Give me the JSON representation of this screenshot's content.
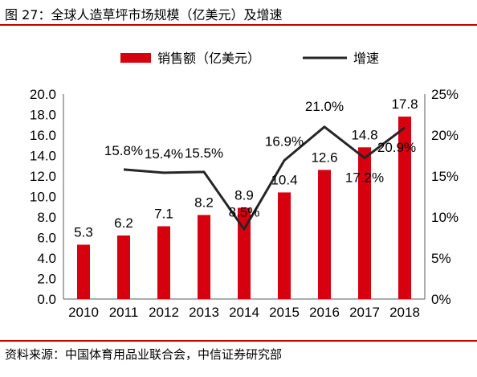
{
  "header": {
    "title": "图 27：全球人造草坪市场规模（亿美元）及增速"
  },
  "footer": {
    "source": "资料来源：中国体育用品业联合会，中信证券研究部"
  },
  "chart_data": {
    "type": "bar",
    "categories": [
      "2010",
      "2011",
      "2012",
      "2013",
      "2014",
      "2015",
      "2016",
      "2017",
      "2018"
    ],
    "series": [
      {
        "name": "销售额（亿美元）",
        "type": "bar",
        "axis": "left",
        "values": [
          5.3,
          6.2,
          7.1,
          8.2,
          8.9,
          10.4,
          12.6,
          14.8,
          17.8
        ],
        "labels": [
          "5.3",
          "6.2",
          "7.1",
          "8.2",
          "8.9",
          "10.4",
          "12.6",
          "14.8",
          "17.8"
        ]
      },
      {
        "name": "增速",
        "type": "line",
        "axis": "right",
        "values": [
          null,
          15.8,
          15.4,
          15.5,
          8.5,
          16.9,
          21.0,
          17.2,
          20.9
        ],
        "labels": [
          "",
          "15.8%",
          "15.4%",
          "15.5%",
          "8.5%",
          "16.9%",
          "21.0%",
          "17.2%",
          "20.9%"
        ]
      }
    ],
    "y_left": {
      "min": 0,
      "max": 20,
      "step": 2,
      "ticks": [
        "0.0",
        "2.0",
        "4.0",
        "6.0",
        "8.0",
        "10.0",
        "12.0",
        "14.0",
        "16.0",
        "18.0",
        "20.0"
      ]
    },
    "y_right": {
      "min": 0,
      "max": 25,
      "step": 5,
      "ticks": [
        "0%",
        "5%",
        "10%",
        "15%",
        "20%",
        "25%"
      ]
    },
    "legend_position": "top",
    "grid": false,
    "colors": {
      "bar": "#d7000f",
      "line": "#262626",
      "rule": "#c00000"
    }
  }
}
